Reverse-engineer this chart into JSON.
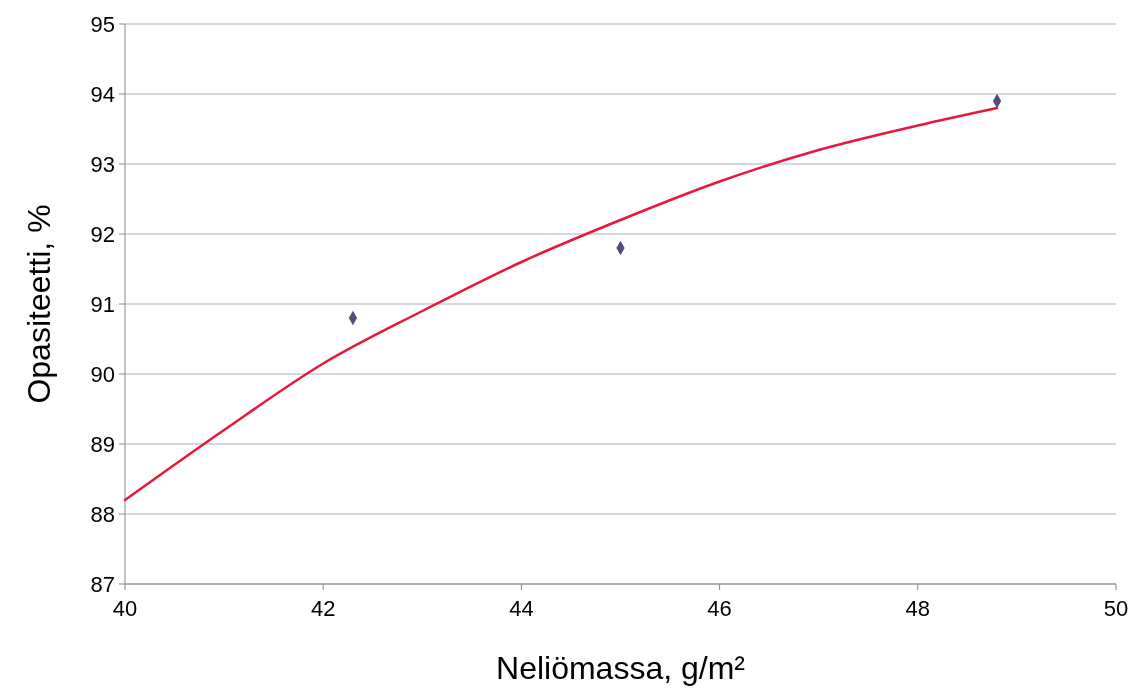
{
  "chart_data": {
    "type": "scatter",
    "xlabel": "Neliömassa, g/m²",
    "ylabel": "Opasiteetti, %",
    "xlim": [
      40,
      50
    ],
    "xticks": [
      40,
      42,
      44,
      46,
      48,
      50
    ],
    "ylim": [
      87,
      95
    ],
    "yticks": [
      87,
      88,
      89,
      90,
      91,
      92,
      93,
      94,
      95
    ],
    "grid": "y",
    "series": [
      {
        "color": "#5a4a7a",
        "marker": "diamond",
        "x": [
          42.3,
          45.0,
          48.8
        ],
        "values": [
          90.8,
          91.8,
          93.9
        ]
      },
      {
        "type": "line",
        "color": "#e8173c",
        "marker": "none",
        "line_style": "solid",
        "x": [
          40,
          41,
          42,
          43,
          44,
          45,
          46,
          47,
          48,
          48.8
        ],
        "values": [
          88.2,
          89.2,
          90.15,
          90.9,
          91.6,
          92.2,
          92.75,
          93.2,
          93.55,
          93.8
        ]
      }
    ]
  }
}
